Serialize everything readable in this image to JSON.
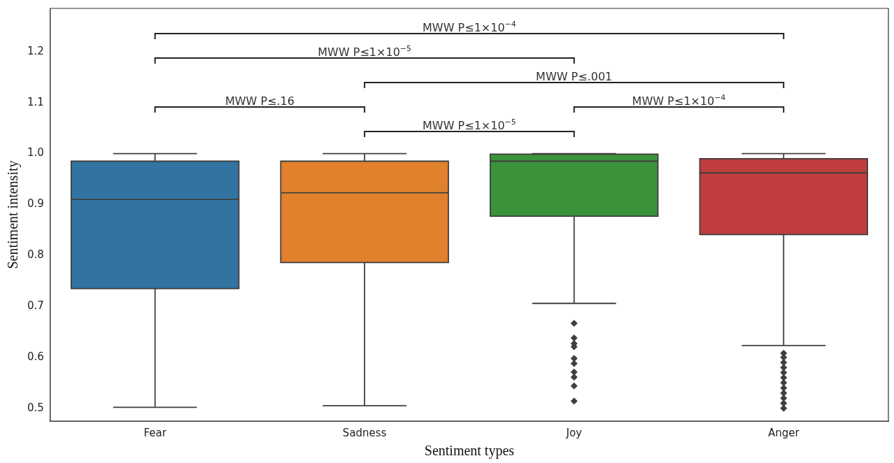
{
  "chart_data": {
    "type": "box",
    "xlabel": "Sentiment types",
    "ylabel": "Sentiment intensity",
    "categories": [
      "Fear",
      "Sadness",
      "Joy",
      "Anger"
    ],
    "colors": [
      "#3274a1",
      "#e1812c",
      "#3a923a",
      "#c03d3e"
    ],
    "boxes": [
      {
        "low": 0.502,
        "q1": 0.735,
        "median": 0.91,
        "q3": 0.985,
        "high": 1.0
      },
      {
        "low": 0.505,
        "q1": 0.786,
        "median": 0.923,
        "q3": 0.985,
        "high": 1.0
      },
      {
        "low": 0.706,
        "q1": 0.877,
        "median": 0.985,
        "q3": 0.999,
        "high": 1.0,
        "outliers": [
          0.667,
          0.638,
          0.627,
          0.621,
          0.598,
          0.588,
          0.571,
          0.561,
          0.544,
          0.514
        ]
      },
      {
        "low": 0.623,
        "q1": 0.841,
        "median": 0.962,
        "q3": 0.99,
        "high": 1.0,
        "outliers": [
          0.608,
          0.6,
          0.59,
          0.58,
          0.57,
          0.56,
          0.55,
          0.54,
          0.53,
          0.52,
          0.51,
          0.5
        ]
      }
    ],
    "marker": "diamond",
    "ylim": [
      0.475,
      1.285
    ],
    "yticks": [
      0.5,
      0.6,
      0.7,
      0.8,
      0.9,
      {
        "value": 1,
        "label": "1.0"
      },
      1.1,
      1.2
    ],
    "annotations": [
      "MWW P≤1×10$^{−4}$",
      "MWW P≤1×10$^{−5}$",
      "MWW P≤.001",
      "MWW P≤.16",
      "MWW P≤1×10$^{−4}$",
      "MWW P≤1×10$^{−5}$"
    ]
  }
}
